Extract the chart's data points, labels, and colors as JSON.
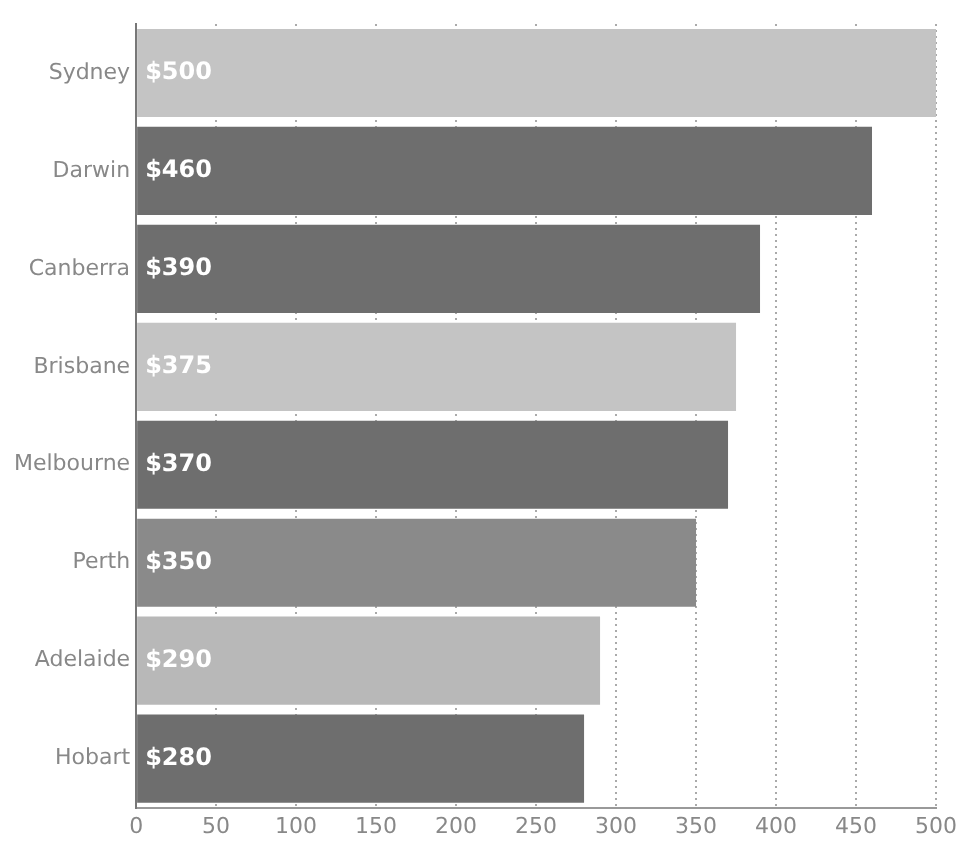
{
  "chart_data": {
    "type": "bar",
    "orientation": "horizontal",
    "categories": [
      "Sydney",
      "Darwin",
      "Canberra",
      "Brisbane",
      "Melbourne",
      "Perth",
      "Adelaide",
      "Hobart"
    ],
    "values": [
      500,
      460,
      390,
      375,
      370,
      350,
      290,
      280
    ],
    "value_labels": [
      "$500",
      "$460",
      "$390",
      "$375",
      "$370",
      "$350",
      "$290",
      "$280"
    ],
    "colors": [
      "#c4c4c4",
      "#6e6e6e",
      "#6e6e6e",
      "#c4c4c4",
      "#6e6e6e",
      "#8a8a8a",
      "#b8b8b8",
      "#6e6e6e"
    ],
    "xlim": [
      0,
      500
    ],
    "xticks": [
      0,
      50,
      100,
      150,
      200,
      250,
      300,
      350,
      400,
      450,
      500
    ],
    "grid": "x"
  }
}
